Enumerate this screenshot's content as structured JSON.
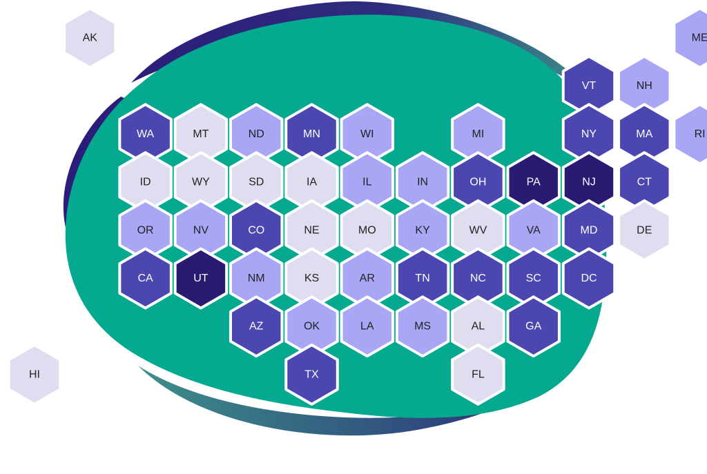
{
  "colors": {
    "level_1": "#dedef0",
    "level_2": "#a9a6f5",
    "level_3": "#4c46b0",
    "level_4": "#2a1a72",
    "blob": "#05a98f",
    "swoosh_dark": "#2b1e7a",
    "swoosh_light": "#3d8e8a",
    "hex_stroke": "#ffffff",
    "text_dark": "#222222",
    "text_light": "#ffffff"
  },
  "states": [
    {
      "code": "AK",
      "col": 1,
      "row": 0,
      "level": 1
    },
    {
      "code": "ME",
      "col": 12,
      "row": 0,
      "level": 2
    },
    {
      "code": "VT",
      "col": 10,
      "row": 1,
      "level": 3
    },
    {
      "code": "NH",
      "col": 11,
      "row": 1,
      "level": 2
    },
    {
      "code": "WA",
      "col": 2,
      "row": 2,
      "level": 3
    },
    {
      "code": "MT",
      "col": 3,
      "row": 2,
      "level": 1
    },
    {
      "code": "ND",
      "col": 4,
      "row": 2,
      "level": 2
    },
    {
      "code": "MN",
      "col": 5,
      "row": 2,
      "level": 3
    },
    {
      "code": "WI",
      "col": 6,
      "row": 2,
      "level": 2
    },
    {
      "code": "MI",
      "col": 8,
      "row": 2,
      "level": 2
    },
    {
      "code": "NY",
      "col": 10,
      "row": 2,
      "level": 3
    },
    {
      "code": "MA",
      "col": 11,
      "row": 2,
      "level": 3
    },
    {
      "code": "RI",
      "col": 12,
      "row": 2,
      "level": 2
    },
    {
      "code": "ID",
      "col": 2,
      "row": 3,
      "level": 1
    },
    {
      "code": "WY",
      "col": 3,
      "row": 3,
      "level": 1
    },
    {
      "code": "SD",
      "col": 4,
      "row": 3,
      "level": 1
    },
    {
      "code": "IA",
      "col": 5,
      "row": 3,
      "level": 1
    },
    {
      "code": "IL",
      "col": 6,
      "row": 3,
      "level": 2
    },
    {
      "code": "IN",
      "col": 7,
      "row": 3,
      "level": 2
    },
    {
      "code": "OH",
      "col": 8,
      "row": 3,
      "level": 3
    },
    {
      "code": "PA",
      "col": 9,
      "row": 3,
      "level": 4
    },
    {
      "code": "NJ",
      "col": 10,
      "row": 3,
      "level": 4
    },
    {
      "code": "CT",
      "col": 11,
      "row": 3,
      "level": 3
    },
    {
      "code": "OR",
      "col": 2,
      "row": 4,
      "level": 2
    },
    {
      "code": "NV",
      "col": 3,
      "row": 4,
      "level": 2
    },
    {
      "code": "CO",
      "col": 4,
      "row": 4,
      "level": 3
    },
    {
      "code": "NE",
      "col": 5,
      "row": 4,
      "level": 1
    },
    {
      "code": "MO",
      "col": 6,
      "row": 4,
      "level": 1
    },
    {
      "code": "KY",
      "col": 7,
      "row": 4,
      "level": 2
    },
    {
      "code": "WV",
      "col": 8,
      "row": 4,
      "level": 1
    },
    {
      "code": "VA",
      "col": 9,
      "row": 4,
      "level": 2
    },
    {
      "code": "MD",
      "col": 10,
      "row": 4,
      "level": 3
    },
    {
      "code": "DE",
      "col": 11,
      "row": 4,
      "level": 1
    },
    {
      "code": "CA",
      "col": 2,
      "row": 5,
      "level": 3
    },
    {
      "code": "UT",
      "col": 3,
      "row": 5,
      "level": 4
    },
    {
      "code": "NM",
      "col": 4,
      "row": 5,
      "level": 2
    },
    {
      "code": "KS",
      "col": 5,
      "row": 5,
      "level": 1
    },
    {
      "code": "AR",
      "col": 6,
      "row": 5,
      "level": 2
    },
    {
      "code": "TN",
      "col": 7,
      "row": 5,
      "level": 3
    },
    {
      "code": "NC",
      "col": 8,
      "row": 5,
      "level": 3
    },
    {
      "code": "SC",
      "col": 9,
      "row": 5,
      "level": 3
    },
    {
      "code": "DC",
      "col": 10,
      "row": 5,
      "level": 3
    },
    {
      "code": "AZ",
      "col": 4,
      "row": 6,
      "level": 3
    },
    {
      "code": "OK",
      "col": 5,
      "row": 6,
      "level": 2
    },
    {
      "code": "LA",
      "col": 6,
      "row": 6,
      "level": 2
    },
    {
      "code": "MS",
      "col": 7,
      "row": 6,
      "level": 2
    },
    {
      "code": "AL",
      "col": 8,
      "row": 6,
      "level": 1
    },
    {
      "code": "GA",
      "col": 9,
      "row": 6,
      "level": 3
    },
    {
      "code": "HI",
      "col": 0,
      "row": 7,
      "level": 1
    },
    {
      "code": "TX",
      "col": 5,
      "row": 7,
      "level": 3
    },
    {
      "code": "FL",
      "col": 8,
      "row": 7,
      "level": 1
    }
  ]
}
